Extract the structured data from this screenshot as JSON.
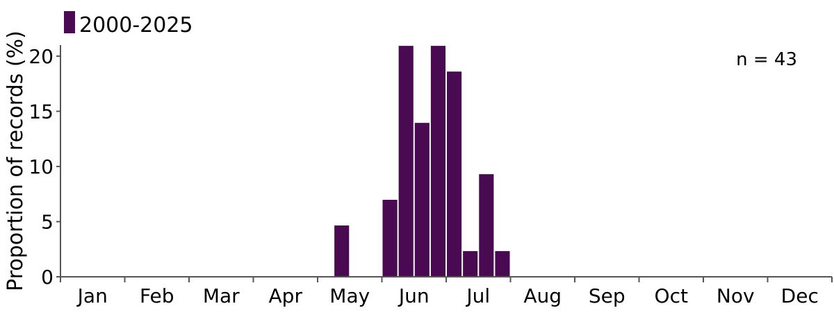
{
  "chart_data": {
    "type": "bar",
    "legend": {
      "label": "2000-2025",
      "color": "#4a0a52",
      "placement": "top-left"
    },
    "annotation": "n = 43",
    "ylabel": "Proportion of records (%)",
    "ylim": [
      0,
      21
    ],
    "yticks": [
      0,
      5,
      10,
      15,
      20
    ],
    "months": [
      "Jan",
      "Feb",
      "Mar",
      "Apr",
      "May",
      "Jun",
      "Jul",
      "Aug",
      "Sep",
      "Oct",
      "Nov",
      "Dec"
    ],
    "bins_per_month": 4,
    "grid": false,
    "series": [
      {
        "values": [
          0,
          0,
          0,
          0,
          0,
          0,
          0,
          0,
          0,
          0,
          0,
          0,
          0,
          0,
          0,
          0,
          0,
          4.65,
          0,
          0,
          6.98,
          20.93,
          13.95,
          20.93,
          18.6,
          2.33,
          9.3,
          2.33,
          0,
          0,
          0,
          0,
          0,
          0,
          0,
          0,
          0,
          0,
          0,
          0,
          0,
          0,
          0,
          0,
          0,
          0,
          0,
          0
        ]
      }
    ]
  }
}
